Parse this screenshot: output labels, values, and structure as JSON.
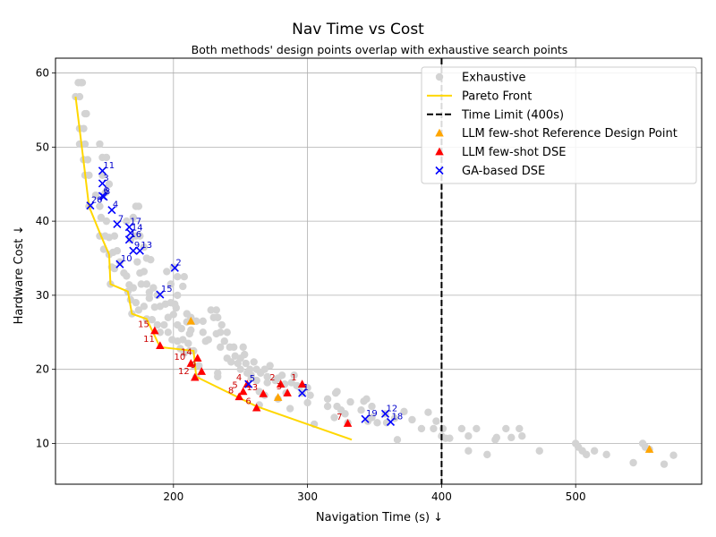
{
  "chart_data": {
    "type": "scatter",
    "title": "Nav Time vs Cost",
    "subtitle": "Both methods' design points overlap with exhaustive search points",
    "xlabel": "Navigation Time (s) ↓",
    "ylabel": "Hardware Cost ↓",
    "xlim": [
      112,
      594
    ],
    "ylim": [
      4.5,
      62
    ],
    "xticks": [
      200,
      300,
      400,
      500
    ],
    "yticks": [
      10,
      20,
      30,
      40,
      50,
      60
    ],
    "grid": true,
    "legend_position": "top-right",
    "time_limit": 400,
    "colors": {
      "exhaustive": "#d3d3d3",
      "pareto": "#ffd700",
      "time_limit": "#000000",
      "llm_ref": "#ffa500",
      "llm_dse": "#ff0000",
      "ga": "#0000ff",
      "llm_label": "#cc0000",
      "ga_label": "#0000cc"
    },
    "legend": [
      {
        "key": "exhaustive",
        "label": "Exhaustive",
        "marker": "circle"
      },
      {
        "key": "pareto",
        "label": "Pareto Front",
        "marker": "line"
      },
      {
        "key": "time_limit",
        "label": "Time Limit (400s)",
        "marker": "dashed"
      },
      {
        "key": "llm_ref",
        "label": "LLM few-shot Reference Design Point",
        "marker": "triangle"
      },
      {
        "key": "llm_dse",
        "label": "LLM few-shot DSE",
        "marker": "triangle"
      },
      {
        "key": "ga",
        "label": "GA-based DSE",
        "marker": "x"
      }
    ],
    "pareto_front": [
      [
        127,
        56.8
      ],
      [
        133,
        48
      ],
      [
        137,
        42
      ],
      [
        146,
        38
      ],
      [
        152,
        35.5
      ],
      [
        153,
        31.5
      ],
      [
        166,
        30.5
      ],
      [
        169,
        27.5
      ],
      [
        180,
        26.8
      ],
      [
        190,
        23
      ],
      [
        215,
        22.5
      ],
      [
        217,
        19
      ],
      [
        262,
        15
      ],
      [
        330,
        10.7
      ],
      [
        333,
        10.5
      ]
    ],
    "exhaustive": [
      [
        127,
        56.8
      ],
      [
        129,
        58.7
      ],
      [
        131,
        58.7
      ],
      [
        130,
        56.8
      ],
      [
        132,
        58.7
      ],
      [
        134,
        54.5
      ],
      [
        135,
        54.5
      ],
      [
        130,
        52.5
      ],
      [
        133,
        52.5
      ],
      [
        130,
        50.4
      ],
      [
        134,
        50.4
      ],
      [
        133,
        48.3
      ],
      [
        136,
        48.3
      ],
      [
        134,
        46.2
      ],
      [
        137,
        46.2
      ],
      [
        145,
        50.4
      ],
      [
        147,
        48.6
      ],
      [
        150,
        48.6
      ],
      [
        147,
        46.2
      ],
      [
        152,
        45
      ],
      [
        149,
        43.8
      ],
      [
        142,
        43.5
      ],
      [
        137,
        42
      ],
      [
        145,
        42
      ],
      [
        146,
        40.5
      ],
      [
        150,
        40
      ],
      [
        145,
        38
      ],
      [
        149,
        38
      ],
      [
        152,
        37.8
      ],
      [
        156,
        38
      ],
      [
        148,
        36.2
      ],
      [
        152,
        35.5
      ],
      [
        155,
        35.8
      ],
      [
        158,
        36
      ],
      [
        154,
        33.8
      ],
      [
        156,
        33.6
      ],
      [
        163,
        33
      ],
      [
        153,
        31.5
      ],
      [
        160,
        34.5
      ],
      [
        165,
        32.6
      ],
      [
        167,
        31.4
      ],
      [
        166,
        30.5
      ],
      [
        170,
        31
      ],
      [
        168,
        29.4
      ],
      [
        172,
        29
      ],
      [
        169,
        27.5
      ],
      [
        174,
        28
      ],
      [
        178,
        28.5
      ],
      [
        172,
        42
      ],
      [
        174,
        42
      ],
      [
        170,
        40.5
      ],
      [
        165,
        40
      ],
      [
        172,
        38
      ],
      [
        175,
        38
      ],
      [
        178,
        36.5
      ],
      [
        180,
        35
      ],
      [
        183,
        34.8
      ],
      [
        168,
        37.5
      ],
      [
        173,
        34.5
      ],
      [
        178,
        33.2
      ],
      [
        175,
        33
      ],
      [
        180,
        31.5
      ],
      [
        185,
        31
      ],
      [
        188,
        30
      ],
      [
        182,
        29.6
      ],
      [
        176,
        31.5
      ],
      [
        182,
        30.4
      ],
      [
        186,
        28.4
      ],
      [
        190,
        28.5
      ],
      [
        194,
        28.8
      ],
      [
        198,
        29
      ],
      [
        202,
        28.3
      ],
      [
        196,
        27
      ],
      [
        200,
        27.4
      ],
      [
        203,
        26
      ],
      [
        206,
        25.5
      ],
      [
        210,
        26.4
      ],
      [
        213,
        25.3
      ],
      [
        180,
        26.8
      ],
      [
        184,
        26.7
      ],
      [
        188,
        26
      ],
      [
        193,
        26
      ],
      [
        190,
        25
      ],
      [
        196,
        25
      ],
      [
        199,
        24
      ],
      [
        203,
        23.8
      ],
      [
        207,
        24
      ],
      [
        211,
        23.5
      ],
      [
        205,
        22.8
      ],
      [
        208,
        22.2
      ],
      [
        212,
        22.5
      ],
      [
        215,
        22.5
      ],
      [
        215,
        20.5
      ],
      [
        219,
        20.5
      ],
      [
        217,
        19
      ],
      [
        195,
        33.2
      ],
      [
        200,
        33.8
      ],
      [
        203,
        32.5
      ],
      [
        208,
        32.5
      ],
      [
        198,
        31.5
      ],
      [
        203,
        30
      ],
      [
        201,
        28.8
      ],
      [
        207,
        31.2
      ],
      [
        210,
        27.5
      ],
      [
        213,
        27
      ],
      [
        215,
        26.5
      ],
      [
        217,
        26.5
      ],
      [
        212,
        24.8
      ],
      [
        222,
        25
      ],
      [
        226,
        24
      ],
      [
        224,
        23.8
      ],
      [
        222,
        26.5
      ],
      [
        228,
        28
      ],
      [
        232,
        28
      ],
      [
        230,
        27
      ],
      [
        233,
        27
      ],
      [
        236,
        26
      ],
      [
        235,
        25
      ],
      [
        232,
        24.8
      ],
      [
        240,
        25
      ],
      [
        238,
        23.8
      ],
      [
        235,
        23
      ],
      [
        242,
        23
      ],
      [
        245,
        23
      ],
      [
        240,
        21.5
      ],
      [
        243,
        21
      ],
      [
        246,
        21.8
      ],
      [
        248,
        20.8
      ],
      [
        250,
        21.5
      ],
      [
        253,
        22
      ],
      [
        252,
        23
      ],
      [
        250,
        20
      ],
      [
        254,
        20.8
      ],
      [
        257,
        20
      ],
      [
        233,
        19.5
      ],
      [
        233,
        19
      ],
      [
        255,
        19.5
      ],
      [
        258,
        18.8
      ],
      [
        262,
        20
      ],
      [
        260,
        21
      ],
      [
        258,
        19.2
      ],
      [
        265,
        19.5
      ],
      [
        262,
        18.5
      ],
      [
        268,
        20
      ],
      [
        272,
        20.5
      ],
      [
        270,
        19
      ],
      [
        270,
        18.2
      ],
      [
        276,
        18.5
      ],
      [
        278,
        18.8
      ],
      [
        281,
        19.2
      ],
      [
        283,
        18
      ],
      [
        290,
        19.2
      ],
      [
        288,
        18.2
      ],
      [
        292,
        17.8
      ],
      [
        294,
        17.6
      ],
      [
        300,
        17.5
      ],
      [
        296,
        16.8
      ],
      [
        302,
        16.5
      ],
      [
        300,
        15.5
      ],
      [
        264,
        17
      ],
      [
        268,
        16.5
      ],
      [
        264,
        15.2
      ],
      [
        278,
        16
      ],
      [
        284,
        16.8
      ],
      [
        287,
        14.7
      ],
      [
        305,
        12.6
      ],
      [
        315,
        16
      ],
      [
        315,
        15
      ],
      [
        320,
        13.5
      ],
      [
        321,
        16.8
      ],
      [
        322,
        17
      ],
      [
        322,
        15
      ],
      [
        325,
        14.5
      ],
      [
        328,
        14
      ],
      [
        332,
        15.6
      ],
      [
        330,
        12.8
      ],
      [
        340,
        14.5
      ],
      [
        342,
        15.7
      ],
      [
        344,
        16
      ],
      [
        345,
        13
      ],
      [
        348,
        15
      ],
      [
        348,
        13.5
      ],
      [
        352,
        12.8
      ],
      [
        358,
        14
      ],
      [
        359,
        12.8
      ],
      [
        365,
        13.4
      ],
      [
        367,
        10.5
      ],
      [
        372,
        14.3
      ],
      [
        378,
        13.2
      ],
      [
        385,
        12
      ],
      [
        390,
        14.2
      ],
      [
        394,
        12
      ],
      [
        396,
        13
      ],
      [
        400,
        11
      ],
      [
        401,
        12
      ],
      [
        403,
        10.7
      ],
      [
        406,
        10.7
      ],
      [
        415,
        12
      ],
      [
        420,
        11
      ],
      [
        420,
        9
      ],
      [
        426,
        12
      ],
      [
        434,
        8.5
      ],
      [
        440,
        10.5
      ],
      [
        441,
        10.8
      ],
      [
        448,
        12
      ],
      [
        452,
        10.8
      ],
      [
        458,
        12
      ],
      [
        460,
        11
      ],
      [
        473,
        9
      ],
      [
        500,
        10
      ],
      [
        502,
        9.5
      ],
      [
        505,
        9
      ],
      [
        508,
        8.5
      ],
      [
        514,
        9
      ],
      [
        523,
        8.5
      ],
      [
        543,
        7.4
      ],
      [
        550,
        10
      ],
      [
        552,
        9.5
      ],
      [
        555,
        9.2
      ],
      [
        566,
        7.2
      ],
      [
        573,
        8.4
      ]
    ],
    "llm_reference": [
      {
        "x": 213,
        "y": 26.5,
        "label": ""
      },
      {
        "x": 278,
        "y": 16.2,
        "label": ""
      },
      {
        "x": 555,
        "y": 9.2,
        "label": ""
      }
    ],
    "llm_dse": [
      {
        "x": 296,
        "y": 18,
        "label": "1"
      },
      {
        "x": 280,
        "y": 18,
        "label": "2"
      },
      {
        "x": 285,
        "y": 16.8,
        "label": "3"
      },
      {
        "x": 255,
        "y": 18,
        "label": "4"
      },
      {
        "x": 252,
        "y": 17,
        "label": "5"
      },
      {
        "x": 262,
        "y": 14.8,
        "label": "6"
      },
      {
        "x": 330,
        "y": 12.7,
        "label": "7"
      },
      {
        "x": 249,
        "y": 16.3,
        "label": "8"
      },
      {
        "x": 221,
        "y": 19.7,
        "label": "9"
      },
      {
        "x": 213,
        "y": 20.8,
        "label": "10"
      },
      {
        "x": 190,
        "y": 23.2,
        "label": "11"
      },
      {
        "x": 216,
        "y": 18.9,
        "label": "12"
      },
      {
        "x": 267,
        "y": 16.7,
        "label": "13"
      },
      {
        "x": 218,
        "y": 21.5,
        "label": "14"
      },
      {
        "x": 186,
        "y": 25.2,
        "label": "15"
      }
    ],
    "ga": [
      {
        "x": 296,
        "y": 16.8,
        "label": "1"
      },
      {
        "x": 201,
        "y": 33.7,
        "label": "2"
      },
      {
        "x": 147,
        "y": 45.1,
        "label": "3"
      },
      {
        "x": 154,
        "y": 41.5,
        "label": "4"
      },
      {
        "x": 256,
        "y": 18,
        "label": "5"
      },
      {
        "x": 147,
        "y": 43.4,
        "label": "6"
      },
      {
        "x": 158,
        "y": 39.6,
        "label": "7"
      },
      {
        "x": 148,
        "y": 43.3,
        "label": "8"
      },
      {
        "x": 170,
        "y": 36,
        "label": "9"
      },
      {
        "x": 160,
        "y": 34.2,
        "label": "10"
      },
      {
        "x": 147,
        "y": 46.8,
        "label": "11"
      },
      {
        "x": 358,
        "y": 14,
        "label": "12"
      },
      {
        "x": 175,
        "y": 36,
        "label": "13"
      },
      {
        "x": 168,
        "y": 38.4,
        "label": "14"
      },
      {
        "x": 190,
        "y": 30.1,
        "label": "15"
      },
      {
        "x": 167,
        "y": 37.5,
        "label": "16"
      },
      {
        "x": 167,
        "y": 39.2,
        "label": "17"
      },
      {
        "x": 362,
        "y": 12.9,
        "label": "18"
      },
      {
        "x": 343,
        "y": 13.3,
        "label": "19"
      },
      {
        "x": 138,
        "y": 42.1,
        "label": "20"
      }
    ]
  }
}
